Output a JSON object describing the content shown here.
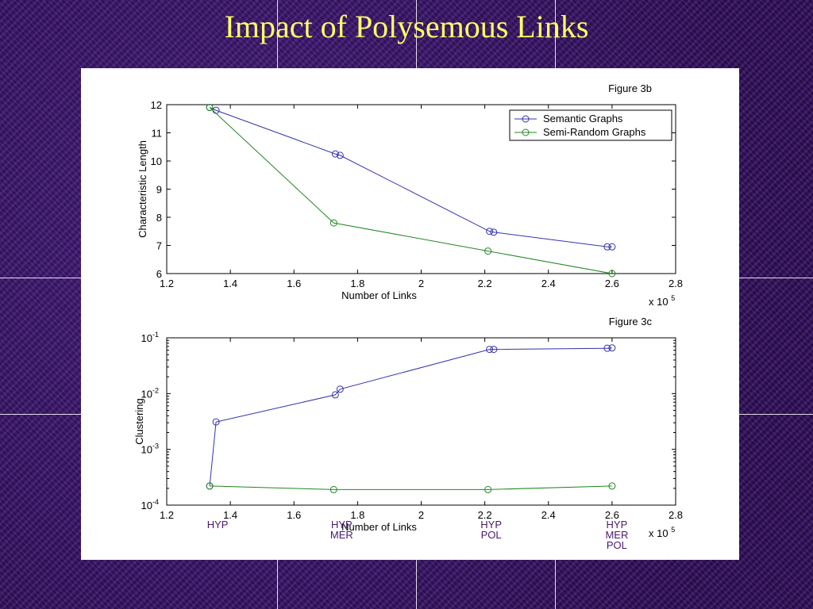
{
  "slide": {
    "title": "Impact of Polysemous Links"
  },
  "chart_data": [
    {
      "type": "line",
      "title": "Figure 3b",
      "xlabel": "Number of Links",
      "ylabel": "Characteristic Length",
      "x_multiplier": "x 10",
      "x_multiplier_exp": "5",
      "xlim": [
        1.2,
        2.8
      ],
      "ylim": [
        6,
        12
      ],
      "xticks": [
        1.2,
        1.4,
        1.6,
        1.8,
        2,
        2.2,
        2.4,
        2.6,
        2.8
      ],
      "xtick_labels": [
        "1.2",
        "1.4",
        "1.6",
        "1.8",
        "2",
        "2.2",
        "2.4",
        "2.6",
        "2.8"
      ],
      "yticks": [
        6,
        7,
        8,
        9,
        10,
        11,
        12
      ],
      "ytick_labels": [
        "6",
        "7",
        "8",
        "9",
        "10",
        "11",
        "12"
      ],
      "grid": false,
      "legend_position": "top-right",
      "series": [
        {
          "name": "Semantic Graphs",
          "color": "#3333aa",
          "x": [
            1.335,
            1.355,
            1.73,
            1.745,
            2.215,
            2.228,
            2.585,
            2.6
          ],
          "y": [
            11.9,
            11.8,
            10.25,
            10.2,
            7.5,
            7.47,
            6.95,
            6.95
          ]
        },
        {
          "name": "Semi-Random Graphs",
          "color": "#228822",
          "x": [
            1.335,
            1.725,
            2.21,
            2.6
          ],
          "y": [
            11.9,
            7.8,
            6.8,
            6.0
          ]
        }
      ]
    },
    {
      "type": "line",
      "title": "Figure 3c",
      "xlabel": "Number of Links",
      "ylabel": "Clustering",
      "y_scale": "log",
      "x_multiplier": "x 10",
      "x_multiplier_exp": "5",
      "xlim": [
        1.2,
        2.8
      ],
      "ylim": [
        0.0001,
        0.1
      ],
      "xticks": [
        1.2,
        1.4,
        1.6,
        1.8,
        2,
        2.2,
        2.4,
        2.6,
        2.8
      ],
      "xtick_labels": [
        "1.2",
        "1.4",
        "1.6",
        "1.8",
        "2",
        "2.2",
        "2.4",
        "2.6",
        "2.8"
      ],
      "yticks": [
        0.0001,
        0.001,
        0.01,
        0.1
      ],
      "ytick_bases": [
        "10",
        "10",
        "10",
        "10"
      ],
      "ytick_exps": [
        "-4",
        "-3",
        "-2",
        "-1"
      ],
      "grid": false,
      "series": [
        {
          "name": "Semantic Graphs",
          "color": "#3333aa",
          "x": [
            1.335,
            1.355,
            1.73,
            1.745,
            2.215,
            2.228,
            2.585,
            2.6
          ],
          "y": [
            0.00022,
            0.0031,
            0.0095,
            0.012,
            0.062,
            0.062,
            0.065,
            0.066
          ]
        },
        {
          "name": "Semi-Random Graphs",
          "color": "#228822",
          "x": [
            1.335,
            1.725,
            2.21,
            2.6
          ],
          "y": [
            0.00022,
            0.00019,
            0.00019,
            0.00022
          ]
        }
      ],
      "annotations": [
        {
          "x": 1.36,
          "lines": [
            "HYP"
          ]
        },
        {
          "x": 1.75,
          "lines": [
            "HYP",
            "MER"
          ]
        },
        {
          "x": 2.22,
          "lines": [
            "HYP",
            "POL"
          ]
        },
        {
          "x": 2.615,
          "lines": [
            "HYP",
            "MER",
            "POL"
          ]
        }
      ]
    }
  ]
}
